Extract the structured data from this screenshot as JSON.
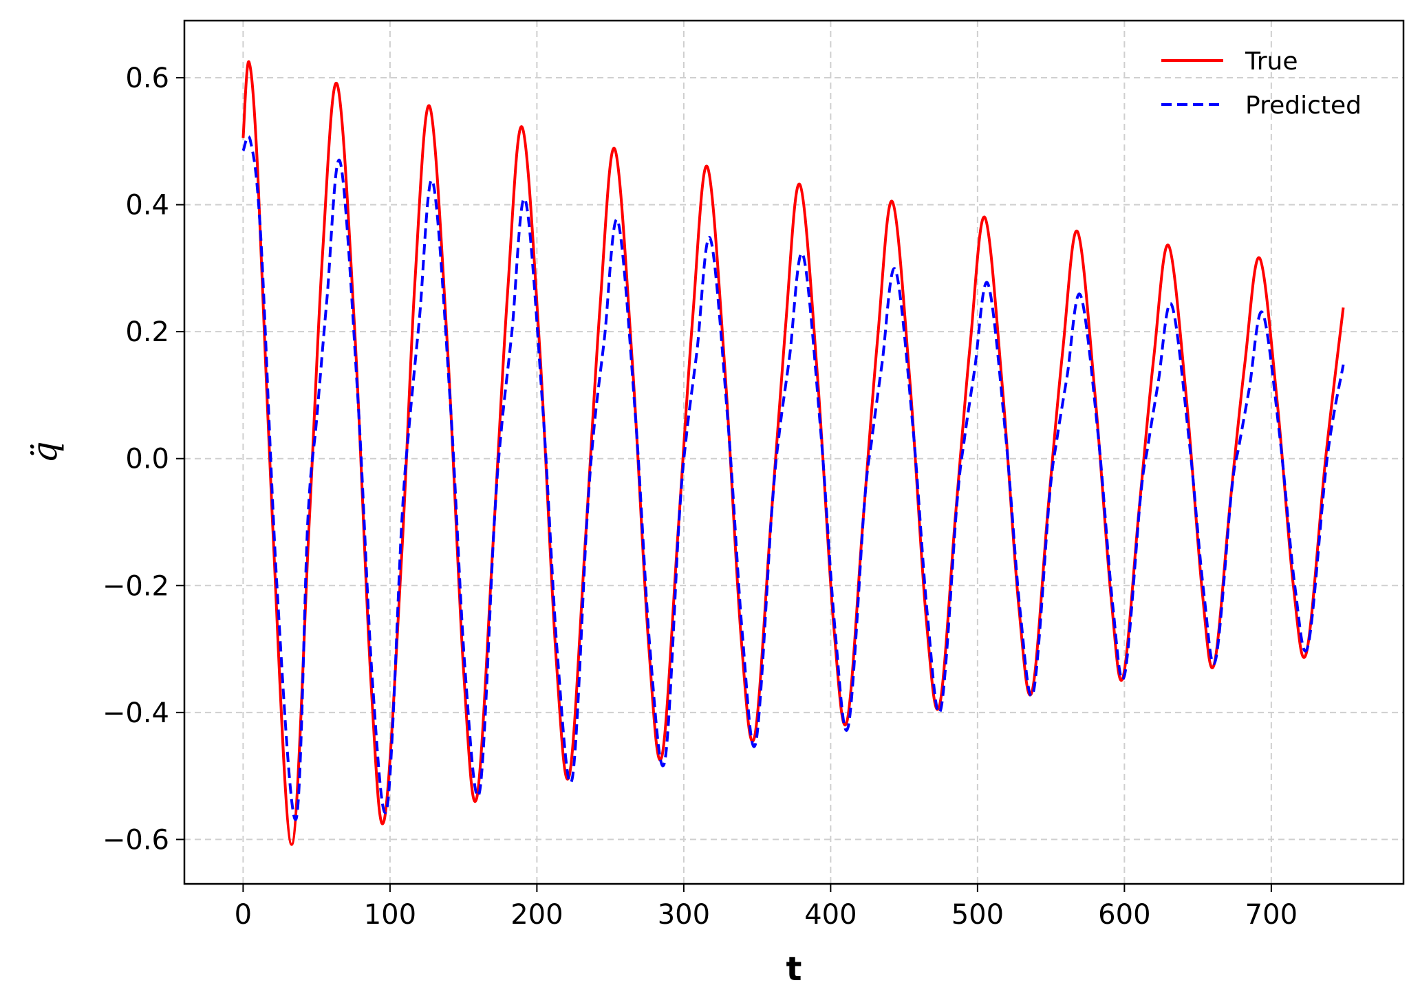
{
  "chart_data": {
    "type": "line",
    "title": "",
    "xlabel": "t",
    "ylabel": "q̈",
    "xlim": [
      -40,
      790
    ],
    "ylim": [
      -0.67,
      0.69
    ],
    "xticks": [
      0,
      100,
      200,
      300,
      400,
      500,
      600,
      700
    ],
    "yticks": [
      -0.6,
      -0.4,
      -0.2,
      0.0,
      0.2,
      0.4,
      0.6
    ],
    "xtick_labels": [
      "0",
      "100",
      "200",
      "300",
      "400",
      "500",
      "600",
      "700"
    ],
    "ytick_labels": [
      "−0.6",
      "−0.4",
      "−0.2",
      "0.0",
      "0.2",
      "0.4",
      "0.6"
    ],
    "grid": true,
    "legend": "top-right",
    "series": [
      {
        "name": "True",
        "color": "#ff0000",
        "style": "solid",
        "points": [
          [
            0,
            0.505
          ],
          [
            4,
            0.625
          ],
          [
            10,
            0.45
          ],
          [
            20,
            -0.1
          ],
          [
            33,
            -0.608
          ],
          [
            45,
            -0.1
          ],
          [
            54,
            0.32
          ],
          [
            64,
            0.59
          ],
          [
            76,
            0.2
          ],
          [
            87,
            -0.35
          ],
          [
            96,
            -0.57
          ],
          [
            108,
            -0.15
          ],
          [
            117,
            0.28
          ],
          [
            127,
            0.555
          ],
          [
            139,
            0.18
          ],
          [
            150,
            -0.33
          ],
          [
            159,
            -0.535
          ],
          [
            170,
            -0.14
          ],
          [
            180,
            0.26
          ],
          [
            190,
            0.522
          ],
          [
            202,
            0.17
          ],
          [
            213,
            -0.31
          ],
          [
            222,
            -0.5
          ],
          [
            233,
            -0.13
          ],
          [
            243,
            0.24
          ],
          [
            253,
            0.488
          ],
          [
            265,
            0.15
          ],
          [
            276,
            -0.29
          ],
          [
            285,
            -0.47
          ],
          [
            296,
            -0.12
          ],
          [
            306,
            0.22
          ],
          [
            316,
            0.46
          ],
          [
            328,
            0.14
          ],
          [
            339,
            -0.28
          ],
          [
            348,
            -0.44
          ],
          [
            359,
            -0.11
          ],
          [
            369,
            0.2
          ],
          [
            379,
            0.432
          ],
          [
            391,
            0.13
          ],
          [
            402,
            -0.26
          ],
          [
            411,
            -0.415
          ],
          [
            422,
            -0.1
          ],
          [
            432,
            0.19
          ],
          [
            442,
            0.405
          ],
          [
            454,
            0.12
          ],
          [
            465,
            -0.25
          ],
          [
            474,
            -0.39
          ],
          [
            485,
            -0.09
          ],
          [
            495,
            0.18
          ],
          [
            505,
            0.38
          ],
          [
            517,
            0.11
          ],
          [
            528,
            -0.23
          ],
          [
            537,
            -0.368
          ],
          [
            548,
            -0.08
          ],
          [
            558,
            0.17
          ],
          [
            568,
            0.358
          ],
          [
            580,
            0.1
          ],
          [
            591,
            -0.22
          ],
          [
            599,
            -0.345
          ],
          [
            610,
            -0.08
          ],
          [
            620,
            0.16
          ],
          [
            630,
            0.336
          ],
          [
            642,
            0.1
          ],
          [
            653,
            -0.21
          ],
          [
            661,
            -0.325
          ],
          [
            672,
            -0.07
          ],
          [
            682,
            0.15
          ],
          [
            692,
            0.316
          ],
          [
            704,
            0.09
          ],
          [
            715,
            -0.2
          ],
          [
            724,
            -0.305
          ],
          [
            737,
            0.0
          ],
          [
            749,
            0.238
          ]
        ]
      },
      {
        "name": "Predicted",
        "color": "#0000ff",
        "style": "dashed",
        "points": [
          [
            0,
            0.485
          ],
          [
            5,
            0.5
          ],
          [
            12,
            0.35
          ],
          [
            23,
            -0.2
          ],
          [
            36,
            -0.568
          ],
          [
            44,
            -0.1
          ],
          [
            50,
            0.06
          ],
          [
            57,
            0.25
          ],
          [
            66,
            0.468
          ],
          [
            78,
            0.1
          ],
          [
            88,
            -0.35
          ],
          [
            98,
            -0.55
          ],
          [
            108,
            -0.1
          ],
          [
            113,
            0.05
          ],
          [
            120,
            0.22
          ],
          [
            129,
            0.437
          ],
          [
            141,
            0.09
          ],
          [
            151,
            -0.33
          ],
          [
            161,
            -0.525
          ],
          [
            171,
            -0.1
          ],
          [
            176,
            0.05
          ],
          [
            183,
            0.2
          ],
          [
            192,
            0.408
          ],
          [
            204,
            0.08
          ],
          [
            214,
            -0.31
          ],
          [
            224,
            -0.505
          ],
          [
            234,
            -0.1
          ],
          [
            239,
            0.05
          ],
          [
            246,
            0.19
          ],
          [
            255,
            0.375
          ],
          [
            267,
            0.07
          ],
          [
            277,
            -0.3
          ],
          [
            287,
            -0.478
          ],
          [
            297,
            -0.09
          ],
          [
            302,
            0.04
          ],
          [
            309,
            0.17
          ],
          [
            318,
            0.347
          ],
          [
            330,
            0.06
          ],
          [
            340,
            -0.28
          ],
          [
            349,
            -0.448
          ],
          [
            360,
            -0.08
          ],
          [
            365,
            0.04
          ],
          [
            372,
            0.16
          ],
          [
            381,
            0.322
          ],
          [
            393,
            0.05
          ],
          [
            403,
            -0.27
          ],
          [
            412,
            -0.422
          ],
          [
            423,
            -0.07
          ],
          [
            428,
            0.03
          ],
          [
            435,
            0.15
          ],
          [
            444,
            0.298
          ],
          [
            456,
            0.05
          ],
          [
            466,
            -0.25
          ],
          [
            475,
            -0.395
          ],
          [
            486,
            -0.07
          ],
          [
            491,
            0.03
          ],
          [
            498,
            0.14
          ],
          [
            507,
            0.276
          ],
          [
            519,
            0.04
          ],
          [
            529,
            -0.24
          ],
          [
            538,
            -0.368
          ],
          [
            549,
            -0.06
          ],
          [
            554,
            0.03
          ],
          [
            561,
            0.13
          ],
          [
            570,
            0.258
          ],
          [
            582,
            0.04
          ],
          [
            592,
            -0.23
          ],
          [
            600,
            -0.342
          ],
          [
            611,
            -0.06
          ],
          [
            616,
            0.02
          ],
          [
            623,
            0.12
          ],
          [
            632,
            0.243
          ],
          [
            644,
            0.03
          ],
          [
            654,
            -0.21
          ],
          [
            662,
            -0.318
          ],
          [
            673,
            -0.05
          ],
          [
            678,
            0.02
          ],
          [
            685,
            0.11
          ],
          [
            694,
            0.23
          ],
          [
            706,
            0.03
          ],
          [
            716,
            -0.2
          ],
          [
            725,
            -0.295
          ],
          [
            738,
            0.0
          ],
          [
            749,
            0.148
          ]
        ]
      }
    ]
  }
}
